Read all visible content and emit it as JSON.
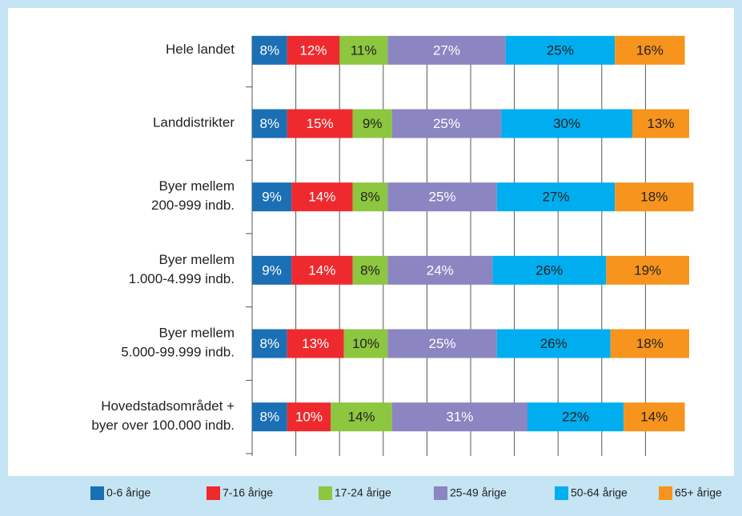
{
  "chart_data": {
    "type": "stacked_bar_horizontal",
    "categories": [
      [
        "Hele landet"
      ],
      [
        "Landdistrikter"
      ],
      [
        "Byer mellem",
        "200-999 indb."
      ],
      [
        "Byer mellem",
        "1.000-4.999 indb."
      ],
      [
        "Byer mellem",
        "5.000-99.999 indb."
      ],
      [
        "Hovedstadsområdet +",
        "byer over 100.000 indb."
      ]
    ],
    "xlim": [
      0,
      100
    ],
    "grid_x": [
      10,
      20,
      30,
      40,
      50,
      60,
      70,
      80,
      90
    ],
    "series": [
      {
        "name": "0-6 årige",
        "color": "#1a6fb5",
        "label_color": "#ffffff",
        "values": [
          8,
          8,
          9,
          9,
          8,
          8
        ],
        "value_labels": [
          "8%",
          "8%",
          "9%",
          "9%",
          "8%",
          "8%"
        ]
      },
      {
        "name": "7-16 årige",
        "color": "#ee2a2e",
        "label_color": "#ffffff",
        "values": [
          12,
          15,
          14,
          14,
          13,
          10
        ],
        "value_labels": [
          "12%",
          "15%",
          "14%",
          "14%",
          "13%",
          "10%"
        ]
      },
      {
        "name": "17-24 årige",
        "color": "#8dc63f",
        "label_color": "#222222",
        "values": [
          11,
          9,
          8,
          8,
          10,
          14
        ],
        "value_labels": [
          "11%",
          "9%",
          "8%",
          "8%",
          "10%",
          "14%"
        ]
      },
      {
        "name": "25-49 årige",
        "color": "#8b85c1",
        "label_color": "#ffffff",
        "values": [
          27,
          25,
          25,
          24,
          25,
          31
        ],
        "value_labels": [
          "27%",
          "25%",
          "25%",
          "24%",
          "25%",
          "31%"
        ]
      },
      {
        "name": "50-64 årige",
        "color": "#00aeef",
        "label_color": "#222222",
        "values": [
          25,
          30,
          27,
          26,
          26,
          22
        ],
        "value_labels": [
          "25%",
          "30%",
          "27%",
          "26%",
          "26%",
          "22%"
        ]
      },
      {
        "name": "65+ årige",
        "color": "#f7941d",
        "label_color": "#222222",
        "values": [
          16,
          13,
          18,
          19,
          18,
          14
        ],
        "value_labels": [
          "16%",
          "13%",
          "18%",
          "19%",
          "18%",
          "14%"
        ]
      }
    ]
  }
}
